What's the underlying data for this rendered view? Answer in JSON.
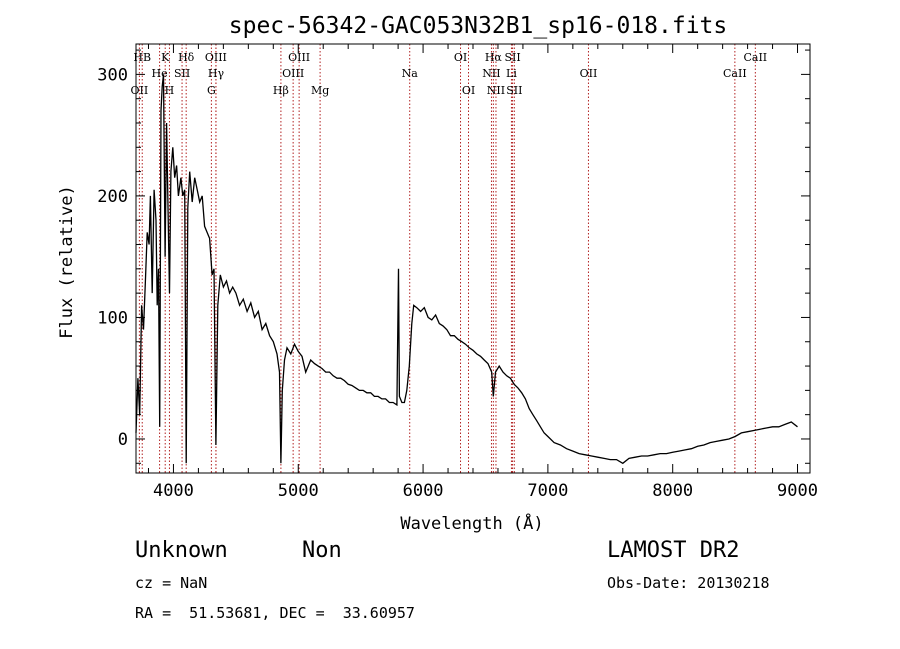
{
  "chart_data": {
    "type": "line",
    "title": "spec-56342-GAC053N32B1_sp16-018.fits",
    "xlabel": "Wavelength (Å)",
    "ylabel": "Flux (relative)",
    "xlim": [
      3700,
      9100
    ],
    "ylim": [
      -28,
      325
    ],
    "xticks": [
      4000,
      5000,
      6000,
      7000,
      8000,
      9000
    ],
    "yticks": [
      0,
      100,
      200,
      300
    ],
    "grid": false,
    "series": [
      {
        "points": [
          [
            3700,
            5
          ],
          [
            3715,
            50
          ],
          [
            3730,
            20
          ],
          [
            3745,
            110
          ],
          [
            3760,
            90
          ],
          [
            3775,
            130
          ],
          [
            3790,
            170
          ],
          [
            3805,
            160
          ],
          [
            3815,
            200
          ],
          [
            3830,
            120
          ],
          [
            3845,
            205
          ],
          [
            3860,
            180
          ],
          [
            3870,
            110
          ],
          [
            3880,
            140
          ],
          [
            3890,
            10
          ],
          [
            3900,
            270
          ],
          [
            3910,
            290
          ],
          [
            3920,
            300
          ],
          [
            3933,
            150
          ],
          [
            3945,
            260
          ],
          [
            3955,
            200
          ],
          [
            3968,
            120
          ],
          [
            3980,
            220
          ],
          [
            3995,
            240
          ],
          [
            4010,
            215
          ],
          [
            4025,
            225
          ],
          [
            4040,
            200
          ],
          [
            4060,
            215
          ],
          [
            4075,
            200
          ],
          [
            4090,
            205
          ],
          [
            4102,
            -20
          ],
          [
            4115,
            190
          ],
          [
            4130,
            220
          ],
          [
            4150,
            195
          ],
          [
            4170,
            215
          ],
          [
            4190,
            205
          ],
          [
            4210,
            195
          ],
          [
            4230,
            200
          ],
          [
            4250,
            175
          ],
          [
            4270,
            170
          ],
          [
            4290,
            165
          ],
          [
            4310,
            135
          ],
          [
            4325,
            140
          ],
          [
            4340,
            -5
          ],
          [
            4355,
            110
          ],
          [
            4375,
            135
          ],
          [
            4400,
            125
          ],
          [
            4425,
            130
          ],
          [
            4450,
            120
          ],
          [
            4475,
            125
          ],
          [
            4500,
            120
          ],
          [
            4530,
            110
          ],
          [
            4560,
            115
          ],
          [
            4590,
            105
          ],
          [
            4620,
            112
          ],
          [
            4650,
            100
          ],
          [
            4680,
            105
          ],
          [
            4710,
            90
          ],
          [
            4740,
            95
          ],
          [
            4770,
            85
          ],
          [
            4800,
            80
          ],
          [
            4830,
            70
          ],
          [
            4850,
            55
          ],
          [
            4861,
            -20
          ],
          [
            4872,
            40
          ],
          [
            4890,
            65
          ],
          [
            4910,
            75
          ],
          [
            4940,
            70
          ],
          [
            4970,
            78
          ],
          [
            5000,
            72
          ],
          [
            5030,
            68
          ],
          [
            5060,
            55
          ],
          [
            5080,
            60
          ],
          [
            5100,
            65
          ],
          [
            5130,
            62
          ],
          [
            5160,
            60
          ],
          [
            5190,
            58
          ],
          [
            5220,
            55
          ],
          [
            5250,
            55
          ],
          [
            5280,
            52
          ],
          [
            5310,
            50
          ],
          [
            5340,
            50
          ],
          [
            5370,
            48
          ],
          [
            5400,
            45
          ],
          [
            5430,
            44
          ],
          [
            5460,
            42
          ],
          [
            5490,
            40
          ],
          [
            5520,
            40
          ],
          [
            5550,
            38
          ],
          [
            5580,
            38
          ],
          [
            5610,
            35
          ],
          [
            5640,
            35
          ],
          [
            5670,
            33
          ],
          [
            5700,
            33
          ],
          [
            5730,
            30
          ],
          [
            5760,
            30
          ],
          [
            5790,
            28
          ],
          [
            5803,
            140
          ],
          [
            5810,
            35
          ],
          [
            5830,
            30
          ],
          [
            5850,
            30
          ],
          [
            5870,
            40
          ],
          [
            5890,
            60
          ],
          [
            5910,
            95
          ],
          [
            5925,
            110
          ],
          [
            5950,
            108
          ],
          [
            5980,
            105
          ],
          [
            6010,
            108
          ],
          [
            6040,
            100
          ],
          [
            6070,
            98
          ],
          [
            6100,
            102
          ],
          [
            6130,
            95
          ],
          [
            6160,
            93
          ],
          [
            6190,
            90
          ],
          [
            6220,
            85
          ],
          [
            6250,
            85
          ],
          [
            6280,
            82
          ],
          [
            6310,
            80
          ],
          [
            6340,
            78
          ],
          [
            6370,
            75
          ],
          [
            6400,
            73
          ],
          [
            6430,
            70
          ],
          [
            6460,
            68
          ],
          [
            6490,
            65
          ],
          [
            6520,
            62
          ],
          [
            6550,
            55
          ],
          [
            6563,
            35
          ],
          [
            6580,
            55
          ],
          [
            6610,
            60
          ],
          [
            6640,
            55
          ],
          [
            6670,
            52
          ],
          [
            6700,
            50
          ],
          [
            6730,
            45
          ],
          [
            6760,
            42
          ],
          [
            6790,
            38
          ],
          [
            6820,
            33
          ],
          [
            6850,
            25
          ],
          [
            6880,
            20
          ],
          [
            6910,
            15
          ],
          [
            6940,
            10
          ],
          [
            6970,
            5
          ],
          [
            7000,
            2
          ],
          [
            7050,
            -3
          ],
          [
            7100,
            -5
          ],
          [
            7150,
            -8
          ],
          [
            7200,
            -10
          ],
          [
            7250,
            -12
          ],
          [
            7300,
            -13
          ],
          [
            7350,
            -14
          ],
          [
            7400,
            -15
          ],
          [
            7450,
            -16
          ],
          [
            7500,
            -17
          ],
          [
            7550,
            -17
          ],
          [
            7600,
            -20
          ],
          [
            7650,
            -16
          ],
          [
            7700,
            -15
          ],
          [
            7750,
            -14
          ],
          [
            7800,
            -14
          ],
          [
            7850,
            -13
          ],
          [
            7900,
            -12
          ],
          [
            7950,
            -12
          ],
          [
            8000,
            -11
          ],
          [
            8050,
            -10
          ],
          [
            8100,
            -9
          ],
          [
            8150,
            -8
          ],
          [
            8200,
            -6
          ],
          [
            8250,
            -5
          ],
          [
            8300,
            -3
          ],
          [
            8350,
            -2
          ],
          [
            8400,
            -1
          ],
          [
            8450,
            0
          ],
          [
            8500,
            2
          ],
          [
            8550,
            5
          ],
          [
            8600,
            6
          ],
          [
            8650,
            7
          ],
          [
            8700,
            8
          ],
          [
            8750,
            9
          ],
          [
            8800,
            10
          ],
          [
            8850,
            10
          ],
          [
            8900,
            12
          ],
          [
            8950,
            14
          ],
          [
            9000,
            10
          ]
        ]
      }
    ],
    "spectral_lines": [
      {
        "label": "HB",
        "x": 3750,
        "row": 0
      },
      {
        "label": "K",
        "x": 3934,
        "row": 0
      },
      {
        "label": "Hδ",
        "x": 4102,
        "row": 0
      },
      {
        "label": "OIII",
        "x": 4340,
        "row": 0
      },
      {
        "label": "OIII",
        "x": 5007,
        "row": 0
      },
      {
        "label": "OI",
        "x": 6300,
        "row": 0
      },
      {
        "label": "Hα",
        "x": 6563,
        "row": 0
      },
      {
        "label": "SII",
        "x": 6717,
        "row": 0
      },
      {
        "label": "CaII",
        "x": 8662,
        "row": 0
      },
      {
        "label": "He",
        "x": 3889,
        "row": 1
      },
      {
        "label": "SII",
        "x": 4069,
        "row": 1
      },
      {
        "label": "Hγ",
        "x": 4341,
        "row": 1
      },
      {
        "label": "OIII",
        "x": 4959,
        "row": 1
      },
      {
        "label": "Na",
        "x": 5893,
        "row": 1
      },
      {
        "label": "NII",
        "x": 6548,
        "row": 1
      },
      {
        "label": "Li",
        "x": 6708,
        "row": 1
      },
      {
        "label": "OII",
        "x": 7325,
        "row": 1
      },
      {
        "label": "CaII",
        "x": 8498,
        "row": 1
      },
      {
        "label": "OII",
        "x": 3727,
        "row": 2
      },
      {
        "label": "H",
        "x": 3968,
        "row": 2
      },
      {
        "label": "G",
        "x": 4304,
        "row": 2
      },
      {
        "label": "Hβ",
        "x": 4861,
        "row": 2
      },
      {
        "label": "Mg",
        "x": 5175,
        "row": 2
      },
      {
        "label": "OI",
        "x": 6364,
        "row": 2
      },
      {
        "label": "NII",
        "x": 6584,
        "row": 2
      },
      {
        "label": "SII",
        "x": 6731,
        "row": 2
      }
    ],
    "line_colors": {
      "spectrum": "#000000",
      "marker": "#b22222",
      "axis": "#000000"
    }
  },
  "info": {
    "class": "Unknown",
    "subclass": "Non",
    "survey": "LAMOST DR2",
    "cz": "cz = NaN",
    "obs_date": "Obs-Date: 20130218",
    "coords": "RA =  51.53681, DEC =  33.60957"
  }
}
